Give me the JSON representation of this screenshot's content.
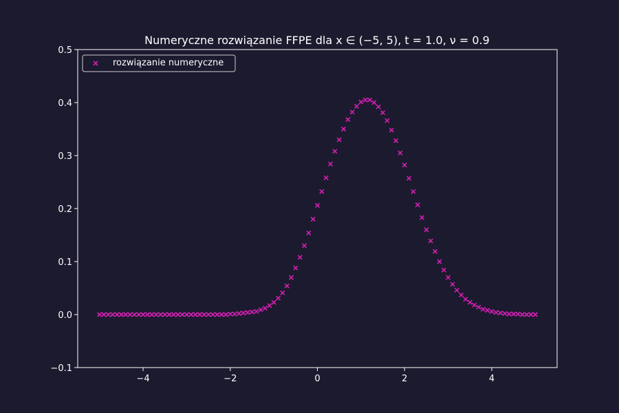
{
  "chart_data": {
    "type": "scatter",
    "title": "Numeryczne rozwiązanie FFPE dla x ∈ (−5, 5), t = 1.0, ν = 0.9",
    "xlabel": "",
    "ylabel": "",
    "xlim": [
      -5.5,
      5.5
    ],
    "ylim": [
      -0.1,
      0.5
    ],
    "xticks": [
      -4,
      -2,
      0,
      2,
      4
    ],
    "xtick_labels": [
      "−4",
      "−2",
      "0",
      "2",
      "4"
    ],
    "yticks": [
      -0.1,
      0.0,
      0.1,
      0.2,
      0.3,
      0.4,
      0.5
    ],
    "ytick_labels": [
      "−0.1",
      "0.0",
      "0.1",
      "0.2",
      "0.3",
      "0.4",
      "0.5"
    ],
    "grid": false,
    "legend_position": "top-left",
    "background_color": "#1c1a2e",
    "plot_background_color": "#1c1a2e",
    "text_color": "#ffffff",
    "series": [
      {
        "name": "rozwiązanie numeryczne",
        "marker": "x",
        "color": "#d61fb4",
        "x": [
          -5.0,
          -4.9,
          -4.8,
          -4.7,
          -4.6,
          -4.5,
          -4.4,
          -4.3,
          -4.2,
          -4.1,
          -4.0,
          -3.9,
          -3.8,
          -3.7,
          -3.6,
          -3.5,
          -3.4,
          -3.3,
          -3.2,
          -3.1,
          -3.0,
          -2.9,
          -2.8,
          -2.7,
          -2.6,
          -2.5,
          -2.4,
          -2.3,
          -2.2,
          -2.1,
          -2.0,
          -1.9,
          -1.8,
          -1.7,
          -1.6,
          -1.5,
          -1.4,
          -1.3,
          -1.2,
          -1.1,
          -1.0,
          -0.9,
          -0.8,
          -0.7,
          -0.6,
          -0.5,
          -0.4,
          -0.3,
          -0.2,
          -0.1,
          0.0,
          0.1,
          0.2,
          0.3,
          0.4,
          0.5,
          0.6,
          0.7,
          0.8,
          0.9,
          1.0,
          1.1,
          1.2,
          1.3,
          1.4,
          1.5,
          1.6,
          1.7,
          1.8,
          1.9,
          2.0,
          2.1,
          2.2,
          2.3,
          2.4,
          2.5,
          2.6,
          2.7,
          2.8,
          2.9,
          3.0,
          3.1,
          3.2,
          3.3,
          3.4,
          3.5,
          3.6,
          3.7,
          3.8,
          3.9,
          4.0,
          4.1,
          4.2,
          4.3,
          4.4,
          4.5,
          4.6,
          4.7,
          4.8,
          4.9,
          5.0
        ],
        "y": [
          0.0,
          0.0,
          0.0,
          0.0,
          0.0,
          0.0,
          0.0,
          0.0,
          0.0,
          0.0,
          0.0,
          0.0,
          0.0,
          0.0,
          0.0,
          0.0,
          0.0,
          0.0,
          0.0,
          0.0,
          0.0,
          0.0,
          0.0,
          0.0,
          0.0,
          0.0,
          0.0,
          0.0,
          0.0,
          0.0,
          0.001,
          0.001,
          0.002,
          0.003,
          0.004,
          0.005,
          0.006,
          0.009,
          0.012,
          0.017,
          0.023,
          0.031,
          0.041,
          0.054,
          0.07,
          0.088,
          0.108,
          0.13,
          0.154,
          0.18,
          0.206,
          0.232,
          0.258,
          0.284,
          0.308,
          0.33,
          0.35,
          0.368,
          0.382,
          0.393,
          0.401,
          0.405,
          0.405,
          0.4,
          0.392,
          0.381,
          0.366,
          0.348,
          0.328,
          0.305,
          0.282,
          0.257,
          0.232,
          0.207,
          0.183,
          0.16,
          0.139,
          0.119,
          0.1,
          0.084,
          0.07,
          0.057,
          0.046,
          0.037,
          0.029,
          0.023,
          0.018,
          0.014,
          0.01,
          0.008,
          0.006,
          0.004,
          0.003,
          0.002,
          0.001,
          0.001,
          0.001,
          0.0,
          0.0,
          0.0,
          0.0
        ]
      }
    ]
  }
}
